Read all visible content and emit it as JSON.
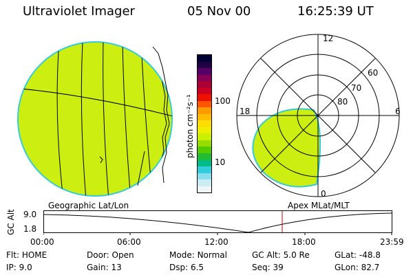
{
  "header": {
    "instrument": "Ultraviolet Imager",
    "date": "05 Nov 00",
    "time": "16:25:39 UT"
  },
  "colorbar": {
    "unit_label": "photon cm⁻²s⁻¹",
    "ticks": [
      "100",
      "10"
    ],
    "colors": [
      "#000033",
      "#220044",
      "#550066",
      "#880055",
      "#aa0033",
      "#cc0022",
      "#ee1100",
      "#ff5500",
      "#ff9900",
      "#ffbb00",
      "#ffdd00",
      "#eeee00",
      "#ccee00",
      "#99dd00",
      "#55cc00",
      "#22bb33",
      "#00bb88",
      "#33ccdd",
      "#88ddee",
      "#ccecf3",
      "#f0f6f8"
    ]
  },
  "polar_plot": {
    "labels_hours": [
      "12",
      "18",
      "6",
      "0"
    ],
    "labels_lat": [
      "60",
      "70",
      "80"
    ]
  },
  "panels": {
    "left_label": "Geographic Lat/Lon",
    "right_label": "Apex MLat/MLT"
  },
  "altitude_plot": {
    "axis_label": "GC Alt",
    "y_ticks": [
      "9.0",
      "1.8"
    ],
    "x_ticks": [
      "00:00",
      "06:00",
      "12:00",
      "18:00",
      "23:59"
    ]
  },
  "info": {
    "row1": [
      {
        "label": "Flt:",
        "value": "HOME"
      },
      {
        "label": "Door:",
        "value": "Open"
      },
      {
        "label": "Mode:",
        "value": "Normal"
      },
      {
        "label": "GC Alt:",
        "value": "5.0 Re"
      },
      {
        "label": "GLat:",
        "value": "-48.8"
      }
    ],
    "row2": [
      {
        "label": "IP:",
        "value": "9.0"
      },
      {
        "label": "Gain:",
        "value": "13"
      },
      {
        "label": "Dsp:",
        "value": "6.5"
      },
      {
        "label": "Seq:",
        "value": "39"
      },
      {
        "label": "GLon:",
        "value": "82.7"
      }
    ]
  }
}
